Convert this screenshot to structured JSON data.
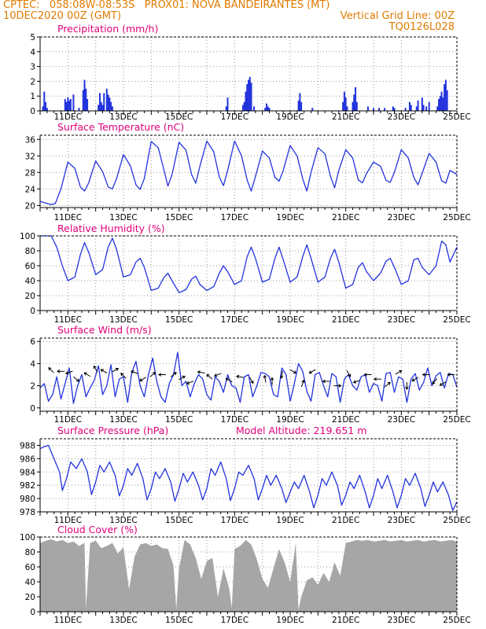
{
  "header": {
    "line1_left": "CPTEC:   058:08W-08:53S   PROX01: NOVA BANDEIRANTES (MT)",
    "line2_left": "10DEC2020 00Z (GMT)",
    "line2_right": "Vertical Grid Line: 00Z",
    "line3_right": "TQ0126L028"
  },
  "colors": {
    "header": "#e07b00",
    "panel_title": "#e0007a",
    "series": "#2233dd",
    "cloud": "#a6a6a6",
    "grid": "#999999"
  },
  "x_axis": {
    "ticks": [
      {
        "day": 11,
        "label": "11DEC"
      },
      {
        "day": 13,
        "label": "13DEC"
      },
      {
        "day": 15,
        "label": "15DEC"
      },
      {
        "day": 17,
        "label": "17DEC"
      },
      {
        "day": 19,
        "label": "19DEC"
      },
      {
        "day": 21,
        "label": "21DEC"
      },
      {
        "day": 23,
        "label": "23DEC"
      },
      {
        "day": 25,
        "label": "25DEC"
      }
    ],
    "range_days": [
      10,
      25
    ]
  },
  "chart_data": [
    {
      "id": "precip",
      "type": "bar",
      "title": "Precipitation (mm/h)",
      "ylim": [
        0,
        5
      ],
      "yticks": [
        0,
        1,
        2,
        3,
        4,
        5
      ],
      "x_unit": "day of December 2020",
      "x": [
        10.1,
        10.15,
        10.2,
        10.25,
        10.9,
        10.95,
        11.0,
        11.05,
        11.1,
        11.2,
        11.4,
        11.55,
        11.6,
        11.65,
        11.7,
        12.1,
        12.15,
        12.2,
        12.25,
        12.3,
        12.4,
        12.45,
        12.5,
        12.55,
        12.6,
        16.7,
        16.75,
        17.3,
        17.35,
        17.4,
        17.45,
        17.5,
        17.55,
        17.6,
        17.7,
        18.1,
        18.15,
        18.2,
        18.25,
        19.3,
        19.35,
        19.4,
        19.8,
        20.9,
        20.95,
        21.0,
        21.05,
        21.25,
        21.3,
        21.35,
        21.4,
        21.8,
        22.0,
        22.2,
        22.4,
        22.7,
        22.75,
        23.15,
        23.3,
        23.35,
        23.55,
        23.6,
        23.75,
        23.8,
        23.9,
        24.0,
        24.3,
        24.35,
        24.4,
        24.45,
        24.5,
        24.55,
        24.6,
        24.65
      ],
      "values": [
        0.3,
        1.3,
        0.6,
        0.2,
        0.8,
        0.6,
        0.9,
        0.7,
        0.8,
        1.1,
        0.2,
        1.4,
        2.1,
        1.5,
        0.8,
        0.4,
        1.2,
        0.6,
        0.4,
        1.2,
        1.5,
        1.1,
        0.9,
        0.6,
        0.3,
        0.3,
        0.9,
        0.4,
        0.6,
        1.3,
        1.8,
        2.1,
        2.3,
        1.9,
        0.3,
        0.2,
        0.5,
        0.3,
        0.2,
        0.7,
        1.2,
        0.6,
        0.2,
        0.6,
        1.3,
        0.9,
        0.3,
        0.6,
        1.1,
        1.6,
        0.6,
        0.3,
        0.2,
        0.2,
        0.2,
        0.3,
        0.2,
        0.2,
        0.6,
        0.4,
        0.3,
        0.7,
        0.9,
        0.4,
        0.3,
        0.6,
        0.3,
        0.8,
        1.0,
        1.3,
        0.9,
        1.8,
        2.1,
        1.4
      ]
    },
    {
      "id": "temp",
      "type": "line",
      "title": "Surface Temperature (nC)",
      "ylim": [
        19.5,
        37
      ],
      "yticks": [
        20,
        24,
        28,
        32,
        36
      ],
      "x": [
        10.0,
        10.2,
        10.4,
        10.55,
        10.75,
        11.0,
        11.25,
        11.45,
        11.6,
        11.75,
        12.0,
        12.25,
        12.45,
        12.6,
        12.75,
        13.0,
        13.25,
        13.45,
        13.6,
        13.75,
        14.0,
        14.25,
        14.45,
        14.6,
        14.75,
        15.0,
        15.25,
        15.45,
        15.6,
        15.75,
        16.0,
        16.25,
        16.45,
        16.6,
        16.75,
        17.0,
        17.25,
        17.45,
        17.6,
        17.75,
        18.0,
        18.25,
        18.45,
        18.6,
        18.75,
        19.0,
        19.25,
        19.45,
        19.6,
        19.75,
        20.0,
        20.25,
        20.45,
        20.6,
        20.75,
        21.0,
        21.25,
        21.45,
        21.6,
        21.75,
        22.0,
        22.25,
        22.45,
        22.6,
        22.75,
        23.0,
        23.25,
        23.45,
        23.6,
        23.75,
        24.0,
        24.25,
        24.45,
        24.6,
        24.75,
        25.0
      ],
      "values": [
        21.0,
        20.6,
        20.2,
        20.5,
        24.0,
        30.5,
        29.0,
        24.5,
        23.5,
        25.5,
        30.8,
        28.2,
        24.5,
        24.0,
        26.5,
        32.3,
        29.6,
        25.0,
        23.9,
        26.5,
        35.5,
        34.0,
        28.8,
        24.7,
        27.5,
        35.3,
        33.4,
        27.5,
        25.4,
        29.5,
        35.6,
        33.0,
        26.9,
        24.8,
        28.5,
        35.6,
        32.0,
        26.2,
        23.5,
        27.0,
        33.2,
        31.5,
        26.8,
        25.9,
        28.5,
        34.5,
        32.0,
        26.5,
        23.5,
        28.0,
        34.0,
        32.5,
        27.1,
        24.3,
        28.5,
        33.5,
        31.5,
        26.2,
        25.5,
        27.8,
        30.5,
        29.5,
        26.1,
        25.6,
        28.0,
        33.5,
        31.5,
        26.8,
        25.0,
        27.8,
        32.6,
        30.5,
        26.0,
        25.4,
        28.5,
        27.5
      ]
    },
    {
      "id": "rh",
      "type": "line",
      "title": "Relative Humidity (%)",
      "ylim": [
        0,
        100
      ],
      "yticks": [
        0,
        20,
        40,
        60,
        80,
        100
      ],
      "x": [
        10.0,
        10.4,
        10.6,
        10.8,
        11.0,
        11.25,
        11.45,
        11.6,
        11.75,
        12.0,
        12.25,
        12.45,
        12.6,
        12.75,
        13.0,
        13.25,
        13.45,
        13.6,
        13.75,
        14.0,
        14.25,
        14.45,
        14.6,
        14.75,
        15.0,
        15.25,
        15.45,
        15.6,
        15.75,
        16.0,
        16.25,
        16.45,
        16.6,
        16.75,
        17.0,
        17.25,
        17.45,
        17.6,
        17.75,
        18.0,
        18.25,
        18.45,
        18.6,
        18.75,
        19.0,
        19.25,
        19.45,
        19.6,
        19.75,
        20.0,
        20.25,
        20.45,
        20.6,
        20.75,
        21.0,
        21.25,
        21.45,
        21.6,
        21.75,
        22.0,
        22.25,
        22.45,
        22.6,
        22.75,
        23.0,
        23.25,
        23.45,
        23.6,
        23.75,
        24.0,
        24.25,
        24.45,
        24.6,
        24.75,
        25.0
      ],
      "values": [
        100,
        100,
        85,
        60,
        40,
        45,
        75,
        91,
        78,
        48,
        55,
        85,
        97,
        82,
        45,
        48,
        65,
        70,
        58,
        27,
        30,
        44,
        50,
        40,
        24,
        28,
        42,
        46,
        35,
        27,
        32,
        50,
        60,
        52,
        35,
        40,
        72,
        85,
        70,
        38,
        42,
        70,
        85,
        68,
        38,
        45,
        72,
        88,
        70,
        38,
        45,
        70,
        82,
        65,
        30,
        35,
        58,
        64,
        52,
        40,
        50,
        66,
        70,
        58,
        35,
        40,
        68,
        70,
        58,
        48,
        60,
        93,
        88,
        65,
        85
      ]
    },
    {
      "id": "wind",
      "type": "line",
      "title": "Surface Wind (m/s)",
      "ylim": [
        -0.3,
        6.3
      ],
      "yticks": [
        0,
        2,
        4,
        6
      ],
      "x": [
        10.0,
        10.15,
        10.3,
        10.45,
        10.6,
        10.75,
        10.9,
        11.05,
        11.2,
        11.35,
        11.5,
        11.65,
        11.8,
        11.95,
        12.1,
        12.25,
        12.4,
        12.55,
        12.7,
        12.85,
        13.0,
        13.15,
        13.3,
        13.45,
        13.6,
        13.75,
        13.9,
        14.05,
        14.2,
        14.35,
        14.5,
        14.65,
        14.8,
        14.95,
        15.1,
        15.25,
        15.4,
        15.55,
        15.7,
        15.85,
        16.0,
        16.15,
        16.3,
        16.45,
        16.6,
        16.75,
        16.9,
        17.05,
        17.2,
        17.35,
        17.5,
        17.65,
        17.8,
        17.95,
        18.1,
        18.25,
        18.4,
        18.55,
        18.7,
        18.85,
        19.0,
        19.15,
        19.3,
        19.45,
        19.6,
        19.75,
        19.9,
        20.05,
        20.2,
        20.35,
        20.5,
        20.65,
        20.8,
        20.95,
        21.1,
        21.25,
        21.4,
        21.55,
        21.7,
        21.85,
        22.0,
        22.15,
        22.3,
        22.45,
        22.6,
        22.75,
        22.9,
        23.05,
        23.2,
        23.35,
        23.5,
        23.65,
        23.8,
        23.95,
        24.1,
        24.25,
        24.4,
        24.55,
        24.7,
        24.85,
        25.0
      ],
      "values": [
        1.8,
        2.2,
        0.6,
        1.2,
        2.8,
        0.8,
        2.2,
        3.6,
        0.4,
        2.0,
        3.0,
        1.0,
        1.8,
        2.5,
        3.8,
        1.2,
        2.0,
        3.9,
        1.0,
        2.6,
        2.8,
        0.5,
        3.2,
        4.2,
        2.0,
        1.0,
        3.0,
        4.5,
        2.4,
        1.0,
        0.5,
        2.2,
        3.0,
        5.0,
        2.0,
        2.4,
        1.0,
        2.2,
        3.0,
        2.6,
        1.2,
        0.7,
        2.8,
        2.4,
        1.4,
        3.0,
        2.0,
        1.8,
        0.5,
        2.8,
        3.0,
        1.0,
        2.0,
        3.2,
        3.1,
        2.8,
        1.2,
        1.0,
        3.6,
        3.0,
        0.6,
        2.2,
        4.0,
        3.3,
        1.5,
        0.6,
        3.0,
        3.2,
        2.0,
        1.0,
        3.1,
        2.8,
        0.5,
        2.6,
        3.0,
        2.0,
        1.6,
        2.8,
        3.0,
        1.4,
        2.2,
        2.0,
        0.6,
        3.1,
        3.2,
        1.4,
        2.8,
        2.6,
        0.5,
        2.6,
        3.1,
        1.6,
        2.3,
        3.6,
        2.0,
        2.9,
        3.2,
        1.8,
        3.1,
        3.0,
        1.9
      ]
    },
    {
      "id": "pressure",
      "type": "line",
      "title": "Surface Pressure (hPa)",
      "annotation": "Model Altitude: 219.651 m",
      "ylim": [
        978,
        989
      ],
      "yticks": [
        978,
        980,
        982,
        984,
        986,
        988
      ],
      "x": [
        10.0,
        10.15,
        10.3,
        10.5,
        10.7,
        10.8,
        10.95,
        11.1,
        11.3,
        11.5,
        11.7,
        11.85,
        12.0,
        12.15,
        12.3,
        12.5,
        12.7,
        12.85,
        13.0,
        13.15,
        13.3,
        13.5,
        13.7,
        13.85,
        14.0,
        14.15,
        14.3,
        14.5,
        14.7,
        14.85,
        15.0,
        15.15,
        15.3,
        15.5,
        15.7,
        15.85,
        16.0,
        16.15,
        16.3,
        16.5,
        16.7,
        16.85,
        17.0,
        17.15,
        17.3,
        17.5,
        17.7,
        17.85,
        18.0,
        18.15,
        18.3,
        18.5,
        18.7,
        18.85,
        19.0,
        19.15,
        19.3,
        19.5,
        19.7,
        19.85,
        20.0,
        20.15,
        20.3,
        20.5,
        20.7,
        20.85,
        21.0,
        21.15,
        21.3,
        21.5,
        21.7,
        21.85,
        22.0,
        22.15,
        22.3,
        22.5,
        22.7,
        22.85,
        23.0,
        23.15,
        23.3,
        23.5,
        23.7,
        23.85,
        24.0,
        24.15,
        24.3,
        24.5,
        24.7,
        24.85,
        25.0
      ],
      "values": [
        987.5,
        987.8,
        988.0,
        986.0,
        984.0,
        981.2,
        983.0,
        985.5,
        984.5,
        986.0,
        984.0,
        980.6,
        982.5,
        985.0,
        984.0,
        985.5,
        983.5,
        980.4,
        982.0,
        984.5,
        983.5,
        985.3,
        983.0,
        979.8,
        981.5,
        984.0,
        983.0,
        984.5,
        982.5,
        979.6,
        981.5,
        983.8,
        982.5,
        984.0,
        982.0,
        979.8,
        981.5,
        984.5,
        983.5,
        985.5,
        983.0,
        979.7,
        981.5,
        984.0,
        983.5,
        985.0,
        983.0,
        979.8,
        981.5,
        983.5,
        982.0,
        983.5,
        981.5,
        979.4,
        981.0,
        982.5,
        981.5,
        983.5,
        981.0,
        978.6,
        980.5,
        983.0,
        982.0,
        984.0,
        982.0,
        979.0,
        980.5,
        982.5,
        981.5,
        983.5,
        981.0,
        978.6,
        980.5,
        983.0,
        981.5,
        983.5,
        981.0,
        978.6,
        980.5,
        983.0,
        982.0,
        983.8,
        981.5,
        978.8,
        980.5,
        982.5,
        981.0,
        982.5,
        980.5,
        978.2,
        979.5
      ]
    },
    {
      "id": "cloud",
      "type": "area",
      "title": "Cloud Cover (%)",
      "ylim": [
        0,
        100
      ],
      "yticks": [
        0,
        20,
        40,
        60,
        80,
        100
      ],
      "x": [
        10.0,
        10.2,
        10.4,
        10.6,
        10.8,
        11.0,
        11.2,
        11.4,
        11.6,
        11.65,
        11.8,
        12.0,
        12.2,
        12.4,
        12.6,
        12.8,
        13.0,
        13.2,
        13.4,
        13.6,
        13.8,
        14.0,
        14.2,
        14.4,
        14.6,
        14.8,
        14.9,
        15.0,
        15.2,
        15.4,
        15.6,
        15.8,
        16.0,
        16.2,
        16.4,
        16.6,
        16.8,
        16.9,
        17.0,
        17.2,
        17.4,
        17.6,
        17.8,
        18.0,
        18.2,
        18.4,
        18.6,
        18.8,
        19.0,
        19.2,
        19.3,
        19.4,
        19.6,
        19.8,
        20.0,
        20.2,
        20.4,
        20.6,
        20.8,
        21.0,
        21.2,
        21.4,
        21.6,
        21.8,
        22.0,
        22.2,
        22.4,
        22.6,
        22.8,
        23.0,
        23.2,
        23.4,
        23.6,
        23.8,
        24.0,
        24.2,
        24.4,
        24.6,
        24.8,
        25.0
      ],
      "values": [
        92,
        95,
        97,
        94,
        96,
        92,
        94,
        88,
        92,
        5,
        92,
        95,
        85,
        88,
        92,
        78,
        86,
        30,
        74,
        90,
        92,
        88,
        90,
        85,
        84,
        62,
        3,
        58,
        96,
        90,
        72,
        44,
        68,
        72,
        20,
        58,
        32,
        5,
        84,
        88,
        96,
        90,
        70,
        44,
        32,
        58,
        84,
        66,
        40,
        92,
        3,
        20,
        42,
        46,
        36,
        52,
        40,
        66,
        48,
        92,
        94,
        96,
        95,
        96,
        94,
        95,
        96,
        94,
        95,
        96,
        94,
        95,
        96,
        94,
        95,
        96,
        94,
        95,
        96,
        94
      ]
    }
  ],
  "panels": {
    "precip_title": "Precipitation (mm/h)",
    "temp_title": "Surface Temperature (nC)",
    "rh_title": "Relative Humidity (%)",
    "wind_title": "Surface Wind (m/s)",
    "pressure_title": "Surface Pressure (hPa)",
    "pressure_annotation": "Model Altitude: 219.651 m",
    "cloud_title": "Cloud Cover (%)"
  },
  "wind_vectors": {
    "x": [
      10.4,
      10.75,
      11.05,
      11.3,
      11.7,
      12.0,
      12.3,
      12.7,
      13.0,
      13.4,
      13.7,
      14.05,
      14.4,
      14.8,
      15.1,
      15.4,
      15.8,
      16.1,
      16.4,
      16.8,
      17.2,
      17.6,
      18.1,
      18.35,
      18.7,
      19.1,
      19.45,
      19.8,
      20.3,
      20.7,
      21.1,
      21.4,
      21.8,
      22.15,
      22.5,
      22.9,
      23.2,
      23.5,
      23.9,
      24.2,
      24.5,
      24.8
    ],
    "speed": [
      3.4,
      3.3,
      3.2,
      2.6,
      3.0,
      3.5,
      3.3,
      3.4,
      2.9,
      3.2,
      2.6,
      3.0,
      3.0,
      3.0,
      2.7,
      2.3,
      3.2,
      2.8,
      3.0,
      2.5,
      2.8,
      2.5,
      2.6,
      2.4,
      3.0,
      3.3,
      2.2,
      3.3,
      2.4,
      2.0,
      3.1,
      2.4,
      3.0,
      2.6,
      2.1,
      3.2,
      2.0,
      2.6,
      3.0,
      2.4,
      2.2,
      3.0
    ],
    "dir_deg": [
      135,
      180,
      200,
      320,
      150,
      120,
      150,
      30,
      135,
      160,
      210,
      40,
      180,
      40,
      30,
      200,
      170,
      140,
      200,
      150,
      170,
      300,
      100,
      90,
      260,
      330,
      70,
      210,
      180,
      0,
      300,
      200,
      180,
      180,
      40,
      30,
      270,
      210,
      180,
      230,
      210,
      180
    ]
  }
}
